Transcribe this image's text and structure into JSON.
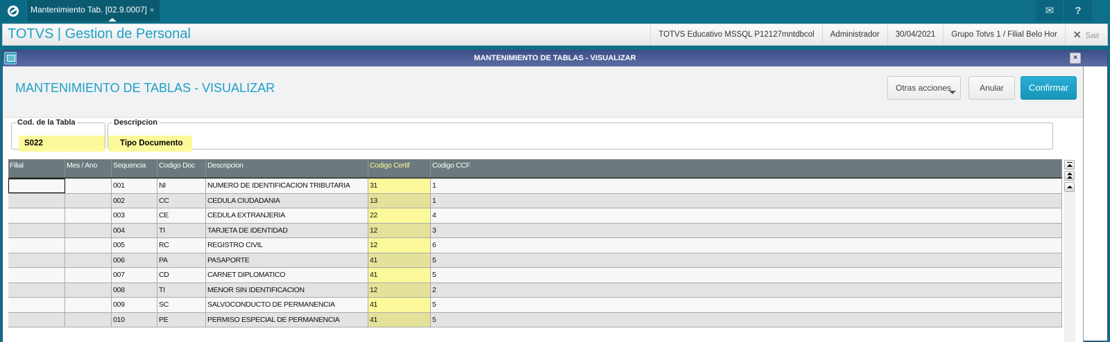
{
  "topbar": {
    "tab_label": "Mantenimiento Tab. [02.9.0007]",
    "tab_close": "×",
    "mail_icon": "envelope-icon",
    "help_icon": "?"
  },
  "header": {
    "app_title": "TOTVS | Gestion de Personal",
    "environment": "TOTVS Educativo MSSQL P12127mntdbcol",
    "user": "Administrador",
    "date": "30/04/2021",
    "branch": "Grupo Totvs 1 / Filial Belo Hor",
    "exit_icon": "✕",
    "exit_label": "Sair"
  },
  "window": {
    "title": "MANTENIMIENTO DE TABLAS - VISUALIZAR",
    "close": "×"
  },
  "page": {
    "title": "MANTENIMIENTO DE TABLAS - VISUALIZAR",
    "actions": {
      "other": "Otras acciones",
      "cancel": "Anular",
      "confirm": "Confirmar"
    }
  },
  "form": {
    "code_label": "Cod. de la Tabla",
    "code_value": "S022",
    "desc_label": "Descripcion",
    "desc_value": "Tipo Documento"
  },
  "grid": {
    "columns": [
      "Filial",
      "Mes / Ano",
      "Sequencia",
      "Codigo Doc",
      "Descripcion",
      "Codigo Certif",
      "Codigo CCF"
    ],
    "rows": [
      [
        "",
        "",
        "001",
        "NI",
        "NUMERO DE IDENTIFICACION TRIBUTARIA",
        "31",
        "1"
      ],
      [
        "",
        "",
        "002",
        "CC",
        "CEDULA CIUDADANIA",
        "13",
        "1"
      ],
      [
        "",
        "",
        "003",
        "CE",
        "CEDULA EXTRANJERIA",
        "22",
        "4"
      ],
      [
        "",
        "",
        "004",
        "TI",
        "TARJETA DE IDENTIDAD",
        "12",
        "3"
      ],
      [
        "",
        "",
        "005",
        "RC",
        "REGISTRO CIVIL",
        "12",
        "6"
      ],
      [
        "",
        "",
        "006",
        "PA",
        "PASAPORTE",
        "41",
        "5"
      ],
      [
        "",
        "",
        "007",
        "CD",
        "CARNET DIPLOMATICO",
        "41",
        "5"
      ],
      [
        "",
        "",
        "008",
        "TI",
        "MENOR SIN IDENTIFICACION",
        "12",
        "2"
      ],
      [
        "",
        "",
        "009",
        "SC",
        "SALVOCONDUCTO DE PERMANENCIA",
        "41",
        "5"
      ],
      [
        "",
        "",
        "010",
        "PE",
        "PERMISO ESPECIAL DE PERMANENCIA",
        "41",
        "5"
      ]
    ]
  },
  "colors": {
    "accent": "#1fa0c6",
    "topbar": "#0d6f89",
    "highlight": "#fbf99a",
    "grid_header": "#6c7a7d"
  }
}
